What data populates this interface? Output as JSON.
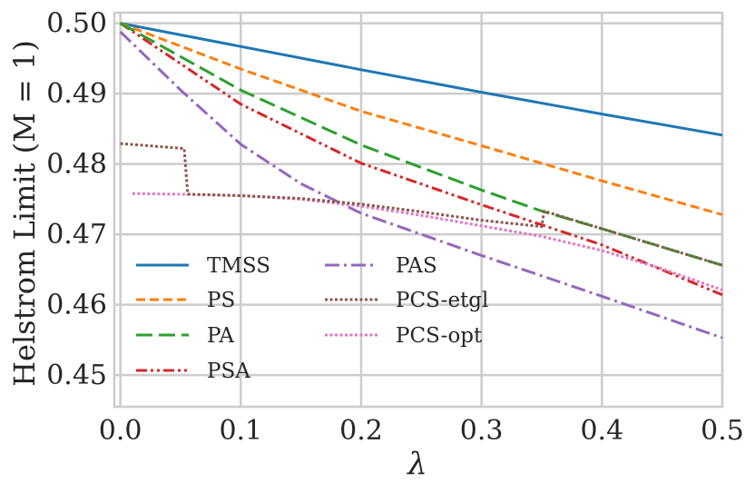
{
  "chart_data": {
    "type": "line",
    "title": "",
    "xlabel": "λ",
    "ylabel": "Helstrom Limit (M = 1)",
    "xlim": [
      -0.005,
      0.5
    ],
    "ylim": [
      0.4455,
      0.5015
    ],
    "xticks": [
      0.0,
      0.1,
      0.2,
      0.3,
      0.4,
      0.5
    ],
    "xtick_labels": [
      "0.0",
      "0.1",
      "0.2",
      "0.3",
      "0.4",
      "0.5"
    ],
    "yticks": [
      0.45,
      0.46,
      0.47,
      0.48,
      0.49,
      0.5
    ],
    "ytick_labels": [
      "0.45",
      "0.46",
      "0.47",
      "0.48",
      "0.49",
      "0.50"
    ],
    "grid": true,
    "legend": {
      "placement": "lower-left",
      "columns": 2
    },
    "series": [
      {
        "name": "TMSS",
        "color": "#1f77b4",
        "style": "solid",
        "x": [
          0.0,
          0.1,
          0.2,
          0.3,
          0.4,
          0.5
        ],
        "y": [
          0.5,
          0.4967,
          0.4934,
          0.4902,
          0.4871,
          0.4841
        ]
      },
      {
        "name": "PS",
        "color": "#ff7f0e",
        "style": "dashed",
        "x": [
          0.0,
          0.1,
          0.2,
          0.3,
          0.4,
          0.5
        ],
        "y": [
          0.5,
          0.4935,
          0.4875,
          0.4826,
          0.4776,
          0.4728
        ]
      },
      {
        "name": "PA",
        "color": "#2ca02c",
        "style": "longdash",
        "x": [
          0.0,
          0.1,
          0.2,
          0.3,
          0.35,
          0.4,
          0.5
        ],
        "y": [
          0.5,
          0.4905,
          0.4827,
          0.4763,
          0.4733,
          0.4708,
          0.4656
        ]
      },
      {
        "name": "PSA",
        "color": "#d62728",
        "style": "dashdotdot",
        "x": [
          0.0,
          0.1,
          0.2,
          0.3,
          0.4,
          0.5
        ],
        "y": [
          0.5,
          0.4885,
          0.4801,
          0.4742,
          0.4685,
          0.4614
        ]
      },
      {
        "name": "PAS",
        "color": "#9467bd",
        "style": "dashdot",
        "x": [
          0.0,
          0.05,
          0.1,
          0.15,
          0.2,
          0.3,
          0.4,
          0.5
        ],
        "y": [
          0.4988,
          0.4905,
          0.4828,
          0.4772,
          0.473,
          0.467,
          0.4612,
          0.4553
        ]
      },
      {
        "name": "PCS-etgl",
        "color": "#8c564b",
        "style": "dotted",
        "x": [
          0.0,
          0.053,
          0.056,
          0.1,
          0.15,
          0.2,
          0.25,
          0.3,
          0.35,
          0.352,
          0.4,
          0.5
        ],
        "y": [
          0.4829,
          0.4822,
          0.4757,
          0.4755,
          0.4751,
          0.4743,
          0.4732,
          0.472,
          0.4711,
          0.4733,
          0.4708,
          0.4656
        ]
      },
      {
        "name": "PCS-opt",
        "color": "#e377c2",
        "style": "dotted",
        "x": [
          0.01,
          0.05,
          0.1,
          0.15,
          0.2,
          0.25,
          0.3,
          0.35,
          0.4,
          0.45,
          0.5
        ],
        "y": [
          0.4758,
          0.4757,
          0.4755,
          0.475,
          0.474,
          0.4727,
          0.4712,
          0.4697,
          0.4677,
          0.4651,
          0.4621
        ]
      }
    ]
  }
}
